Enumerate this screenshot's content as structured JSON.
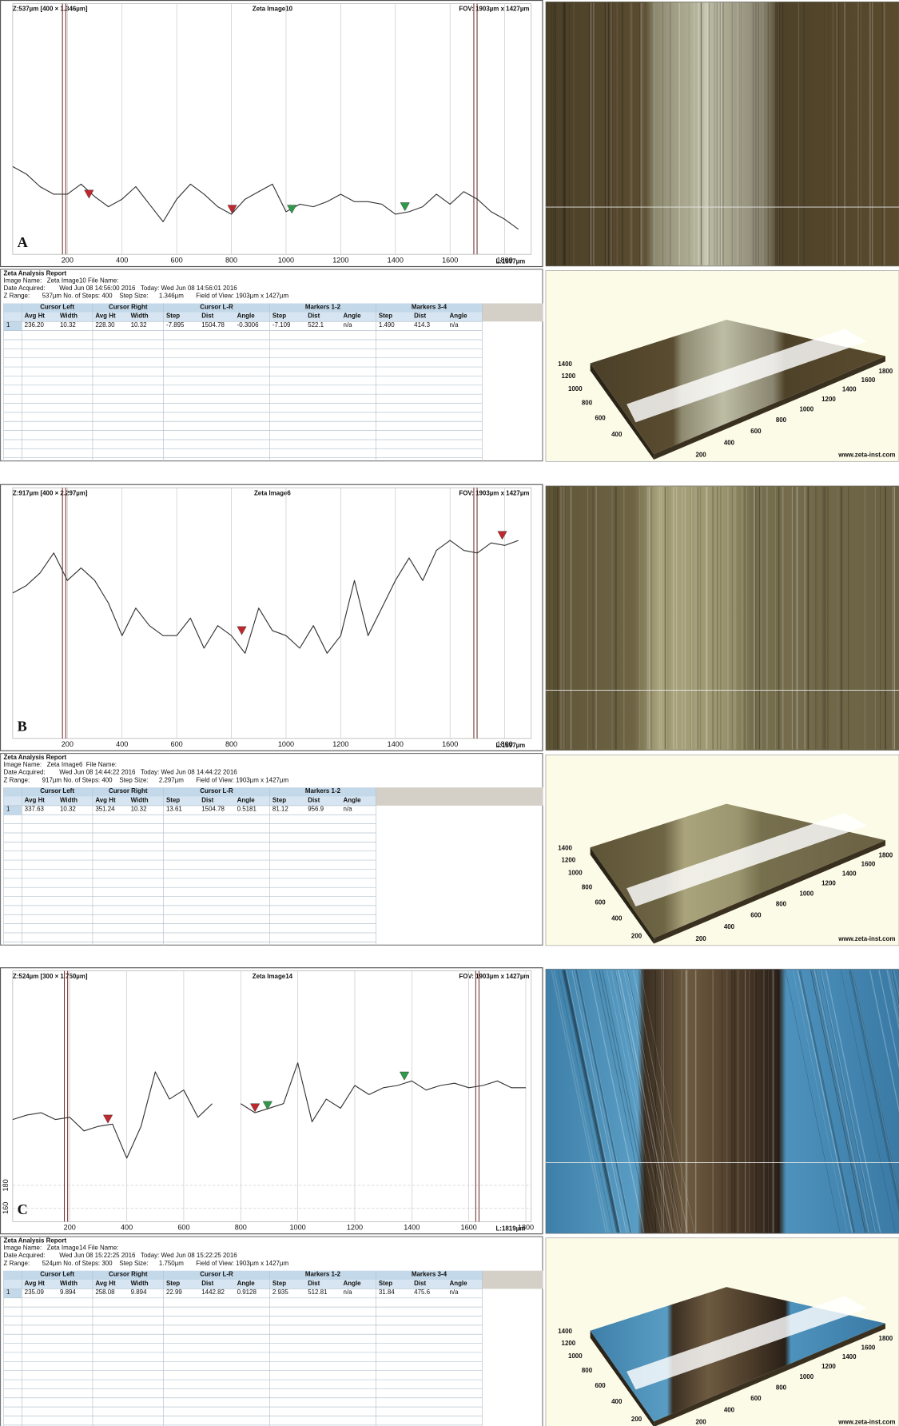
{
  "chart_data": [
    {
      "type": "line",
      "panel_label": "A",
      "z_label": "Z:537µm [400 × 1.346µm]",
      "title": "Zeta Image10",
      "fov": "FOV: 1903µm x 1427µm",
      "length_label": "L:1897µm",
      "x": [
        0,
        50,
        100,
        150,
        200,
        250,
        300,
        350,
        400,
        450,
        500,
        550,
        600,
        650,
        700,
        750,
        800,
        850,
        900,
        950,
        1000,
        1050,
        1100,
        1150,
        1200,
        1250,
        1300,
        1350,
        1400,
        1450,
        1500,
        1550,
        1600,
        1650,
        1700,
        1750,
        1800,
        1850
      ],
      "series": [
        {
          "color": "#333333",
          "values": [
            35,
            32,
            27,
            24,
            24,
            28,
            23,
            19,
            22,
            27,
            20,
            13,
            22,
            28,
            24,
            19,
            16,
            22,
            25,
            28,
            17,
            20,
            19,
            21,
            24,
            21,
            21,
            20,
            16,
            17,
            19,
            24,
            20,
            25,
            22,
            17,
            14,
            10
          ]
        }
      ],
      "xlim": [
        0,
        1897
      ],
      "xticks": [
        200,
        400,
        600,
        800,
        1000,
        1200,
        1400,
        1600,
        1800
      ],
      "ylim": [
        0,
        100
      ],
      "grid": true,
      "cursors": [
        188,
        1693
      ],
      "markers": [
        {
          "x": 279,
          "y": 22,
          "color": "#c0282d"
        },
        {
          "x": 803,
          "y": 16,
          "color": "#c0282d"
        },
        {
          "x": 1021,
          "y": 16,
          "color": "#2e9a4a"
        },
        {
          "x": 1435,
          "y": 17,
          "color": "#2e9a4a"
        }
      ]
    },
    {
      "type": "line",
      "panel_label": "B",
      "z_label": "Z:917µm [400 × 2.297µm]",
      "title": "Zeta Image6",
      "fov": "FOV: 1903µm x 1427µm",
      "length_label": "L:1897µm",
      "x": [
        0,
        50,
        100,
        150,
        200,
        250,
        300,
        350,
        400,
        450,
        500,
        550,
        600,
        650,
        700,
        750,
        800,
        850,
        900,
        950,
        1000,
        1050,
        1100,
        1150,
        1200,
        1250,
        1300,
        1350,
        1400,
        1450,
        1500,
        1550,
        1600,
        1650,
        1700,
        1750,
        1800,
        1850
      ],
      "series": [
        {
          "color": "#333333",
          "values": [
            58,
            61,
            66,
            74,
            63,
            68,
            63,
            54,
            41,
            52,
            45,
            41,
            41,
            48,
            36,
            45,
            41,
            34,
            52,
            43,
            41,
            36,
            45,
            34,
            41,
            63,
            41,
            52,
            63,
            72,
            63,
            75,
            79,
            75,
            74,
            78,
            77,
            79
          ]
        }
      ],
      "xlim": [
        0,
        1897
      ],
      "xticks": [
        200,
        400,
        600,
        800,
        1000,
        1200,
        1400,
        1600,
        1800
      ],
      "ylim": [
        0,
        100
      ],
      "grid": true,
      "cursors": [
        188,
        1693
      ],
      "markers": [
        {
          "x": 838,
          "y": 41,
          "color": "#c0282d"
        },
        {
          "x": 1791,
          "y": 79,
          "color": "#c0282d"
        }
      ]
    },
    {
      "type": "line",
      "panel_label": "C",
      "z_label": "Z:524µm [300 × 1.750µm]",
      "title": "Zeta Image14",
      "fov": "FOV: 1903µm x 1427µm",
      "length_label": "L:1819µm",
      "x": [
        0,
        50,
        100,
        150,
        200,
        250,
        300,
        350,
        400,
        450,
        500,
        550,
        600,
        650,
        700,
        750,
        800,
        850,
        900,
        950,
        1000,
        1050,
        1100,
        1150,
        1200,
        1250,
        1300,
        1350,
        1400,
        1450,
        1500,
        1550,
        1600,
        1650,
        1700,
        1750,
        1800
      ],
      "series": [
        {
          "color": "#333333",
          "values": [
            238,
            242,
            244,
            238,
            240,
            228,
            232,
            234,
            204,
            232,
            280,
            256,
            264,
            240,
            252,
            null,
            252,
            244,
            248,
            252,
            288,
            236,
            256,
            248,
            268,
            260,
            266,
            268,
            272,
            264,
            268,
            270,
            266,
            268,
            272,
            266,
            266
          ]
        }
      ],
      "xlim": [
        0,
        1819
      ],
      "xticks": [
        200,
        400,
        600,
        800,
        1000,
        1200,
        1400,
        1600,
        1800
      ],
      "ylim": [
        148,
        369
      ],
      "yticks": [
        160,
        180
      ],
      "grid": true,
      "cursors": [
        187,
        1630
      ],
      "markers": [
        {
          "x": 334,
          "y": 234,
          "color": "#c0282d"
        },
        {
          "x": 850,
          "y": 244,
          "color": "#c0282d"
        },
        {
          "x": 894,
          "y": 246,
          "color": "#2e9a4a"
        },
        {
          "x": 1374,
          "y": 272,
          "color": "#2e9a4a"
        }
      ]
    }
  ],
  "reports": [
    {
      "title": "Zeta Analysis Report",
      "image_line": "Image Name:   Zeta Image10 File Name:",
      "date_line": "Date Acquired:        Wed Jun 08 14:56:00 2016   Today: Wed Jun 08 14:56:01 2016",
      "range_line": "Z Range:       537µm No. of Steps: 400    Step Size:      1.346µm       Field of View: 1903µm x 1427µm",
      "groups": [
        {
          "label": "Cursor Left",
          "columns": [
            "Avg Ht",
            "Width"
          ]
        },
        {
          "label": "Cursor Right",
          "columns": [
            "Avg Ht",
            "Width"
          ]
        },
        {
          "label": "Cursor L-R",
          "columns": [
            "Step",
            "Dist",
            "Angle"
          ]
        },
        {
          "label": "Markers 1-2",
          "columns": [
            "Step",
            "Dist",
            "Angle"
          ]
        },
        {
          "label": "Markers 3-4",
          "columns": [
            "Step",
            "Dist",
            "Angle"
          ]
        }
      ],
      "rows": [
        [
          "1",
          "236.20",
          "10.32",
          "228.30",
          "10.32",
          "-7.895",
          "1504.78",
          "-0.3006",
          "-7.109",
          "522.1",
          "n/a",
          "1.490",
          "414.3",
          "n/a"
        ]
      ]
    },
    {
      "title": "Zeta Analysis Report",
      "image_line": "Image Name:   Zeta Image6  File Name:",
      "date_line": "Date Acquired:        Wed Jun 08 14:44:22 2016   Today: Wed Jun 08 14:44:22 2016",
      "range_line": "Z Range:       917µm No. of Steps: 400    Step Size:      2.297µm       Field of View: 1903µm x 1427µm",
      "groups": [
        {
          "label": "Cursor Left",
          "columns": [
            "Avg Ht",
            "Width"
          ]
        },
        {
          "label": "Cursor Right",
          "columns": [
            "Avg Ht",
            "Width"
          ]
        },
        {
          "label": "Cursor L-R",
          "columns": [
            "Step",
            "Dist",
            "Angle"
          ]
        },
        {
          "label": "Markers 1-2",
          "columns": [
            "Step",
            "Dist",
            "Angle"
          ]
        }
      ],
      "rows": [
        [
          "1",
          "337.63",
          "10.32",
          "351.24",
          "10.32",
          "13.61",
          "1504.78",
          "0.5181",
          "81.12",
          "956.9",
          "n/a"
        ]
      ]
    },
    {
      "title": "Zeta Analysis Report",
      "image_line": "Image Name:   Zeta Image14 File Name:",
      "date_line": "Date Acquired:        Wed Jun 08 15:22:25 2016   Today: Wed Jun 08 15:22:25 2016",
      "range_line": "Z Range:       524µm No. of Steps: 300    Step Size:      1.750µm       Field of View: 1903µm x 1427µm",
      "groups": [
        {
          "label": "Cursor Left",
          "columns": [
            "Avg Ht",
            "Width"
          ]
        },
        {
          "label": "Cursor Right",
          "columns": [
            "Avg Ht",
            "Width"
          ]
        },
        {
          "label": "Cursor L-R",
          "columns": [
            "Step",
            "Dist",
            "Angle"
          ]
        },
        {
          "label": "Markers 1-2",
          "columns": [
            "Step",
            "Dist",
            "Angle"
          ]
        },
        {
          "label": "Markers 3-4",
          "columns": [
            "Step",
            "Dist",
            "Angle"
          ]
        }
      ],
      "rows": [
        [
          "1",
          "235.09",
          "9.894",
          "258.08",
          "9.894",
          "22.99",
          "1442.82",
          "0.9128",
          "2.935",
          "512.81",
          "n/a",
          "31.84",
          "475.6",
          "n/a"
        ]
      ]
    }
  ],
  "views3d": [
    {
      "y_labels": [
        1400,
        1200,
        1000,
        800,
        600,
        400
      ],
      "x_labels": [
        200,
        400,
        600,
        800,
        1000,
        1200,
        1400,
        1600,
        1800
      ],
      "credit": "www.zeta-inst.com"
    },
    {
      "y_labels": [
        1400,
        1200,
        1000,
        800,
        600,
        400,
        200
      ],
      "x_labels": [
        200,
        400,
        600,
        800,
        1000,
        1200,
        1400,
        1600,
        1800
      ],
      "credit": "www.zeta-inst.com"
    },
    {
      "y_labels": [
        1400,
        1200,
        1000,
        800,
        600,
        400,
        200
      ],
      "x_labels": [
        200,
        400,
        600,
        800,
        1000,
        1200,
        1400,
        1600,
        1800
      ],
      "credit": "www.zeta-inst.com"
    }
  ]
}
